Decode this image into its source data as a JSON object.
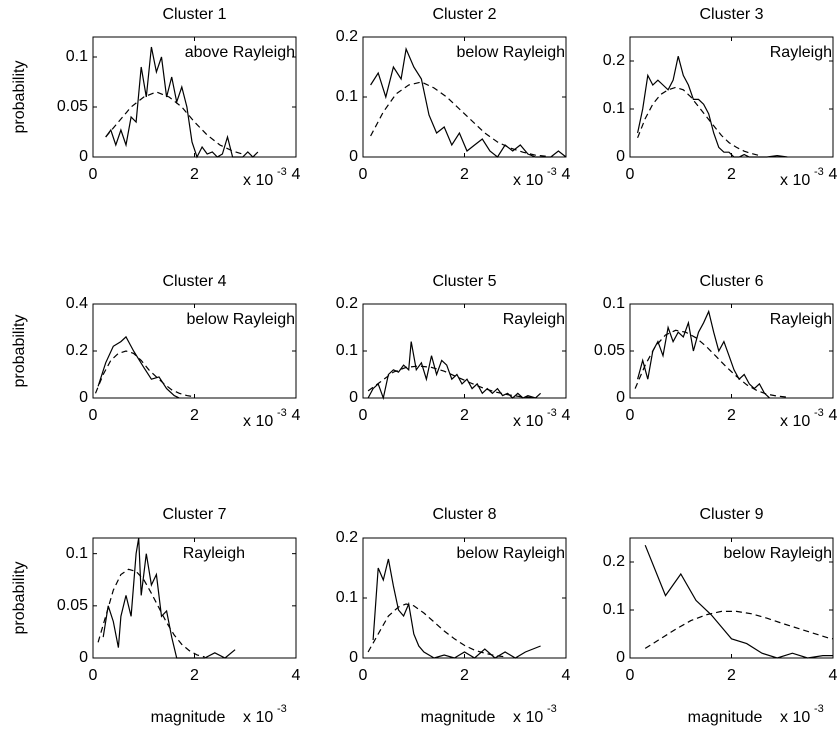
{
  "chart_data": [
    {
      "type": "line",
      "title": "Cluster 1",
      "annotation": "above Rayleigh",
      "ylabel": "probability",
      "x_scale_label": "x 10",
      "x_scale_exponent": "-3",
      "xlim": [
        0,
        4
      ],
      "xticks": [
        0,
        2,
        4
      ],
      "ylim": [
        0,
        0.12
      ],
      "yticks": [
        0,
        0.05,
        0.1
      ],
      "series": [
        {
          "color": "#000000",
          "style": "solid",
          "x": [
            0.25,
            0.35,
            0.45,
            0.55,
            0.65,
            0.75,
            0.85,
            0.95,
            1.05,
            1.15,
            1.25,
            1.35,
            1.45,
            1.55,
            1.65,
            1.75,
            1.85,
            1.95,
            2.05,
            2.15,
            2.25,
            2.35,
            2.45,
            2.55,
            2.65,
            2.75,
            2.85,
            2.95,
            3.05,
            3.15,
            3.25
          ],
          "values": [
            0.02,
            0.027,
            0.012,
            0.027,
            0.012,
            0.04,
            0.035,
            0.09,
            0.06,
            0.11,
            0.085,
            0.1,
            0.06,
            0.08,
            0.055,
            0.07,
            0.05,
            0.015,
            0,
            0.01,
            0.003,
            0.005,
            0,
            0.003,
            0.02,
            0,
            0,
            0,
            0.005,
            0,
            0.005
          ]
        },
        {
          "color": "#000000",
          "style": "dashed",
          "x": [
            0.25,
            0.5,
            0.75,
            1.0,
            1.25,
            1.5,
            1.75,
            2.0,
            2.25,
            2.5,
            2.75,
            3.0
          ],
          "values": [
            0.02,
            0.035,
            0.05,
            0.06,
            0.065,
            0.06,
            0.05,
            0.035,
            0.022,
            0.012,
            0.006,
            0.002
          ]
        }
      ]
    },
    {
      "type": "line",
      "title": "Cluster 2",
      "annotation": "below Rayleigh",
      "x_scale_label": "x 10",
      "x_scale_exponent": "-3",
      "xlim": [
        0,
        4
      ],
      "xticks": [
        0,
        2,
        4
      ],
      "ylim": [
        0,
        0.2
      ],
      "yticks": [
        0,
        0.1,
        0.2
      ],
      "series": [
        {
          "color": "#000000",
          "style": "solid",
          "x": [
            0.15,
            0.3,
            0.45,
            0.6,
            0.75,
            0.85,
            1.0,
            1.15,
            1.3,
            1.45,
            1.6,
            1.75,
            1.9,
            2.05,
            2.2,
            2.35,
            2.5,
            2.65,
            2.8,
            2.95,
            3.1,
            3.25,
            3.4,
            3.55,
            3.7,
            3.85,
            4.0
          ],
          "values": [
            0.12,
            0.14,
            0.1,
            0.15,
            0.13,
            0.18,
            0.15,
            0.13,
            0.07,
            0.04,
            0.05,
            0.02,
            0.04,
            0.01,
            0.02,
            0.03,
            0.01,
            0,
            0.02,
            0.01,
            0.02,
            0.005,
            0,
            0,
            0,
            0.01,
            0
          ]
        },
        {
          "color": "#000000",
          "style": "dashed",
          "x": [
            0.15,
            0.4,
            0.65,
            0.9,
            1.15,
            1.4,
            1.65,
            1.9,
            2.15,
            2.4,
            2.65,
            2.9,
            3.15,
            3.4,
            3.65
          ],
          "values": [
            0.035,
            0.075,
            0.105,
            0.12,
            0.125,
            0.115,
            0.1,
            0.08,
            0.06,
            0.04,
            0.025,
            0.015,
            0.008,
            0.003,
            0.001
          ]
        }
      ]
    },
    {
      "type": "line",
      "title": "Cluster 3",
      "annotation": "Rayleigh",
      "x_scale_label": "x 10",
      "x_scale_exponent": "-3",
      "xlim": [
        0,
        4
      ],
      "xticks": [
        0,
        2,
        4
      ],
      "ylim": [
        0,
        0.25
      ],
      "yticks": [
        0,
        0.1,
        0.2
      ],
      "series": [
        {
          "color": "#000000",
          "style": "solid",
          "x": [
            0.15,
            0.25,
            0.35,
            0.45,
            0.55,
            0.65,
            0.75,
            0.85,
            0.95,
            1.05,
            1.15,
            1.25,
            1.35,
            1.45,
            1.55,
            1.65,
            1.75,
            1.85,
            1.95,
            2.05,
            2.15,
            2.25,
            2.35,
            2.5,
            2.7,
            2.9,
            3.1
          ],
          "values": [
            0.05,
            0.1,
            0.17,
            0.15,
            0.16,
            0.15,
            0.14,
            0.16,
            0.21,
            0.17,
            0.15,
            0.12,
            0.12,
            0.11,
            0.09,
            0.05,
            0.02,
            0.01,
            0.01,
            0,
            0,
            0.005,
            0,
            0,
            0,
            0.003,
            0
          ]
        },
        {
          "color": "#000000",
          "style": "dashed",
          "x": [
            0.15,
            0.3,
            0.45,
            0.6,
            0.75,
            0.9,
            1.05,
            1.2,
            1.35,
            1.5,
            1.65,
            1.8,
            1.95,
            2.1,
            2.25,
            2.4,
            2.55
          ],
          "values": [
            0.04,
            0.08,
            0.11,
            0.13,
            0.14,
            0.145,
            0.14,
            0.125,
            0.105,
            0.085,
            0.065,
            0.045,
            0.03,
            0.02,
            0.012,
            0.007,
            0.003
          ]
        }
      ]
    },
    {
      "type": "line",
      "title": "Cluster 4",
      "annotation": "below Rayleigh",
      "ylabel": "probability",
      "x_scale_label": "x 10",
      "x_scale_exponent": "-3",
      "xlim": [
        0,
        4
      ],
      "xticks": [
        0,
        2,
        4
      ],
      "ylim": [
        0,
        0.4
      ],
      "yticks": [
        0,
        0.2,
        0.4
      ],
      "series": [
        {
          "color": "#000000",
          "style": "solid",
          "x": [
            0.1,
            0.25,
            0.4,
            0.55,
            0.65,
            0.8,
            1.0,
            1.15,
            1.3,
            1.45,
            1.6,
            1.7
          ],
          "values": [
            0.05,
            0.15,
            0.22,
            0.24,
            0.26,
            0.2,
            0.13,
            0.08,
            0.09,
            0.04,
            0.01,
            0
          ]
        },
        {
          "color": "#000000",
          "style": "dashed",
          "x": [
            0.05,
            0.2,
            0.35,
            0.5,
            0.65,
            0.8,
            0.95,
            1.1,
            1.25,
            1.4,
            1.55,
            1.7,
            1.85,
            2.0
          ],
          "values": [
            0.02,
            0.1,
            0.16,
            0.19,
            0.2,
            0.19,
            0.16,
            0.12,
            0.09,
            0.06,
            0.035,
            0.02,
            0.01,
            0.005
          ]
        }
      ]
    },
    {
      "type": "line",
      "title": "Cluster 5",
      "annotation": "Rayleigh",
      "x_scale_label": "x 10",
      "x_scale_exponent": "-3",
      "xlim": [
        0,
        4
      ],
      "xticks": [
        0,
        2,
        4
      ],
      "ylim": [
        0,
        0.2
      ],
      "yticks": [
        0,
        0.1,
        0.2
      ],
      "series": [
        {
          "color": "#000000",
          "style": "solid",
          "x": [
            0.1,
            0.2,
            0.3,
            0.4,
            0.5,
            0.6,
            0.7,
            0.8,
            0.9,
            0.95,
            1.05,
            1.15,
            1.25,
            1.35,
            1.45,
            1.55,
            1.65,
            1.75,
            1.85,
            1.95,
            2.05,
            2.15,
            2.25,
            2.35,
            2.45,
            2.55,
            2.65,
            2.75,
            2.85,
            2.95,
            3.05,
            3.15,
            3.25,
            3.4,
            3.5
          ],
          "values": [
            0,
            0.02,
            0.03,
            0,
            0.05,
            0.06,
            0.055,
            0.07,
            0.06,
            0.12,
            0.06,
            0.075,
            0.04,
            0.09,
            0.05,
            0.08,
            0.07,
            0.04,
            0.05,
            0.03,
            0.04,
            0.02,
            0.03,
            0.01,
            0.02,
            0.01,
            0.02,
            0.005,
            0.01,
            0,
            0.01,
            0,
            0.005,
            0,
            0.01
          ]
        },
        {
          "color": "#000000",
          "style": "dashed",
          "x": [
            0.1,
            0.35,
            0.6,
            0.85,
            1.1,
            1.35,
            1.6,
            1.85,
            2.1,
            2.35,
            2.6,
            2.85,
            3.1,
            3.35
          ],
          "values": [
            0.015,
            0.035,
            0.055,
            0.065,
            0.068,
            0.065,
            0.057,
            0.045,
            0.033,
            0.022,
            0.013,
            0.007,
            0.003,
            0.001
          ]
        }
      ]
    },
    {
      "type": "line",
      "title": "Cluster 6",
      "annotation": "Rayleigh",
      "x_scale_label": "x 10",
      "x_scale_exponent": "-3",
      "xlim": [
        0,
        4
      ],
      "xticks": [
        0,
        2,
        4
      ],
      "ylim": [
        0,
        0.1
      ],
      "yticks": [
        0,
        0.05,
        0.1
      ],
      "series": [
        {
          "color": "#000000",
          "style": "solid",
          "x": [
            0.15,
            0.25,
            0.35,
            0.45,
            0.55,
            0.65,
            0.75,
            0.85,
            0.95,
            1.05,
            1.15,
            1.25,
            1.35,
            1.45,
            1.55,
            1.65,
            1.75,
            1.85,
            1.95,
            2.05,
            2.15,
            2.25,
            2.35,
            2.45,
            2.55,
            2.65,
            2.75
          ],
          "values": [
            0.02,
            0.04,
            0.02,
            0.05,
            0.06,
            0.045,
            0.075,
            0.06,
            0.07,
            0.065,
            0.08,
            0.05,
            0.07,
            0.08,
            0.092,
            0.07,
            0.05,
            0.06,
            0.045,
            0.03,
            0.02,
            0.025,
            0.015,
            0.01,
            0.015,
            0.005,
            0
          ]
        },
        {
          "color": "#000000",
          "style": "dashed",
          "x": [
            0.1,
            0.3,
            0.5,
            0.7,
            0.9,
            1.1,
            1.3,
            1.5,
            1.7,
            1.9,
            2.1,
            2.3,
            2.5,
            2.7,
            2.9,
            3.1
          ],
          "values": [
            0.01,
            0.035,
            0.055,
            0.067,
            0.072,
            0.07,
            0.064,
            0.055,
            0.044,
            0.033,
            0.023,
            0.014,
            0.008,
            0.004,
            0.002,
            0.001
          ]
        }
      ]
    },
    {
      "type": "line",
      "title": "Cluster 7",
      "annotation": "Rayleigh",
      "ylabel": "probability",
      "xlabel": "magnitude",
      "x_scale_label": "x 10",
      "x_scale_exponent": "-3",
      "xlim": [
        0,
        4
      ],
      "xticks": [
        0,
        2,
        4
      ],
      "ylim": [
        0,
        0.115
      ],
      "yticks": [
        0,
        0.05,
        0.1
      ],
      "series": [
        {
          "color": "#000000",
          "style": "solid",
          "x": [
            0.2,
            0.3,
            0.4,
            0.5,
            0.55,
            0.65,
            0.75,
            0.85,
            0.9,
            0.95,
            1.05,
            1.15,
            1.25,
            1.35,
            1.45,
            1.55,
            1.65,
            1.8,
            2.0,
            2.2,
            2.4,
            2.6,
            2.8
          ],
          "values": [
            0.02,
            0.05,
            0.035,
            0.01,
            0.04,
            0.06,
            0.04,
            0.1,
            0.115,
            0.06,
            0.1,
            0.07,
            0.08,
            0.04,
            0.045,
            0.02,
            0,
            0,
            0,
            0,
            0.005,
            0,
            0.008
          ]
        },
        {
          "color": "#000000",
          "style": "dashed",
          "x": [
            0.1,
            0.25,
            0.4,
            0.55,
            0.7,
            0.85,
            1.0,
            1.15,
            1.3,
            1.45,
            1.6,
            1.75,
            1.9,
            2.05,
            2.2
          ],
          "values": [
            0.015,
            0.04,
            0.065,
            0.08,
            0.085,
            0.083,
            0.075,
            0.062,
            0.048,
            0.034,
            0.022,
            0.013,
            0.007,
            0.003,
            0.001
          ]
        }
      ]
    },
    {
      "type": "line",
      "title": "Cluster 8",
      "annotation": "below Rayleigh",
      "xlabel": "magnitude",
      "x_scale_label": "x 10",
      "x_scale_exponent": "-3",
      "xlim": [
        0,
        4
      ],
      "xticks": [
        0,
        2,
        4
      ],
      "ylim": [
        0,
        0.2
      ],
      "yticks": [
        0,
        0.1,
        0.2
      ],
      "series": [
        {
          "color": "#000000",
          "style": "solid",
          "x": [
            0.2,
            0.3,
            0.4,
            0.5,
            0.6,
            0.7,
            0.8,
            0.9,
            1.0,
            1.1,
            1.2,
            1.4,
            1.6,
            1.8,
            2.0,
            2.2,
            2.4,
            2.6,
            2.8,
            3.0,
            3.2,
            3.5
          ],
          "values": [
            0.03,
            0.15,
            0.13,
            0.165,
            0.12,
            0.08,
            0.07,
            0.09,
            0.04,
            0.02,
            0.01,
            0,
            0.005,
            0,
            0.01,
            0,
            0.015,
            0,
            0.01,
            0,
            0.01,
            0.02
          ]
        },
        {
          "color": "#000000",
          "style": "dashed",
          "x": [
            0.1,
            0.3,
            0.5,
            0.7,
            0.85,
            1.0,
            1.2,
            1.4,
            1.6,
            1.8,
            2.0,
            2.2,
            2.4,
            2.6,
            2.8
          ],
          "values": [
            0.01,
            0.04,
            0.07,
            0.085,
            0.09,
            0.087,
            0.075,
            0.06,
            0.045,
            0.032,
            0.021,
            0.013,
            0.008,
            0.004,
            0.002
          ]
        }
      ]
    },
    {
      "type": "line",
      "title": "Cluster 9",
      "annotation": "below Rayleigh",
      "xlabel": "magnitude",
      "x_scale_label": "x 10",
      "x_scale_exponent": "-3",
      "xlim": [
        0,
        4
      ],
      "xticks": [
        0,
        2,
        4
      ],
      "ylim": [
        0,
        0.25
      ],
      "yticks": [
        0,
        0.1,
        0.2
      ],
      "series": [
        {
          "color": "#000000",
          "style": "solid",
          "x": [
            0.3,
            0.7,
            1.0,
            1.3,
            1.6,
            2.0,
            2.3,
            2.6,
            2.9,
            3.2,
            3.5,
            3.8,
            4.0
          ],
          "values": [
            0.235,
            0.13,
            0.175,
            0.12,
            0.09,
            0.04,
            0.03,
            0.01,
            0,
            0.01,
            0,
            0.005,
            0.005
          ]
        },
        {
          "color": "#000000",
          "style": "dashed",
          "x": [
            0.3,
            0.6,
            0.9,
            1.2,
            1.5,
            1.8,
            2.1,
            2.4,
            2.7,
            3.0,
            3.3,
            3.6,
            3.9,
            4.0
          ],
          "values": [
            0.02,
            0.04,
            0.06,
            0.078,
            0.09,
            0.097,
            0.097,
            0.092,
            0.083,
            0.072,
            0.062,
            0.052,
            0.042,
            0.04
          ]
        }
      ]
    }
  ]
}
